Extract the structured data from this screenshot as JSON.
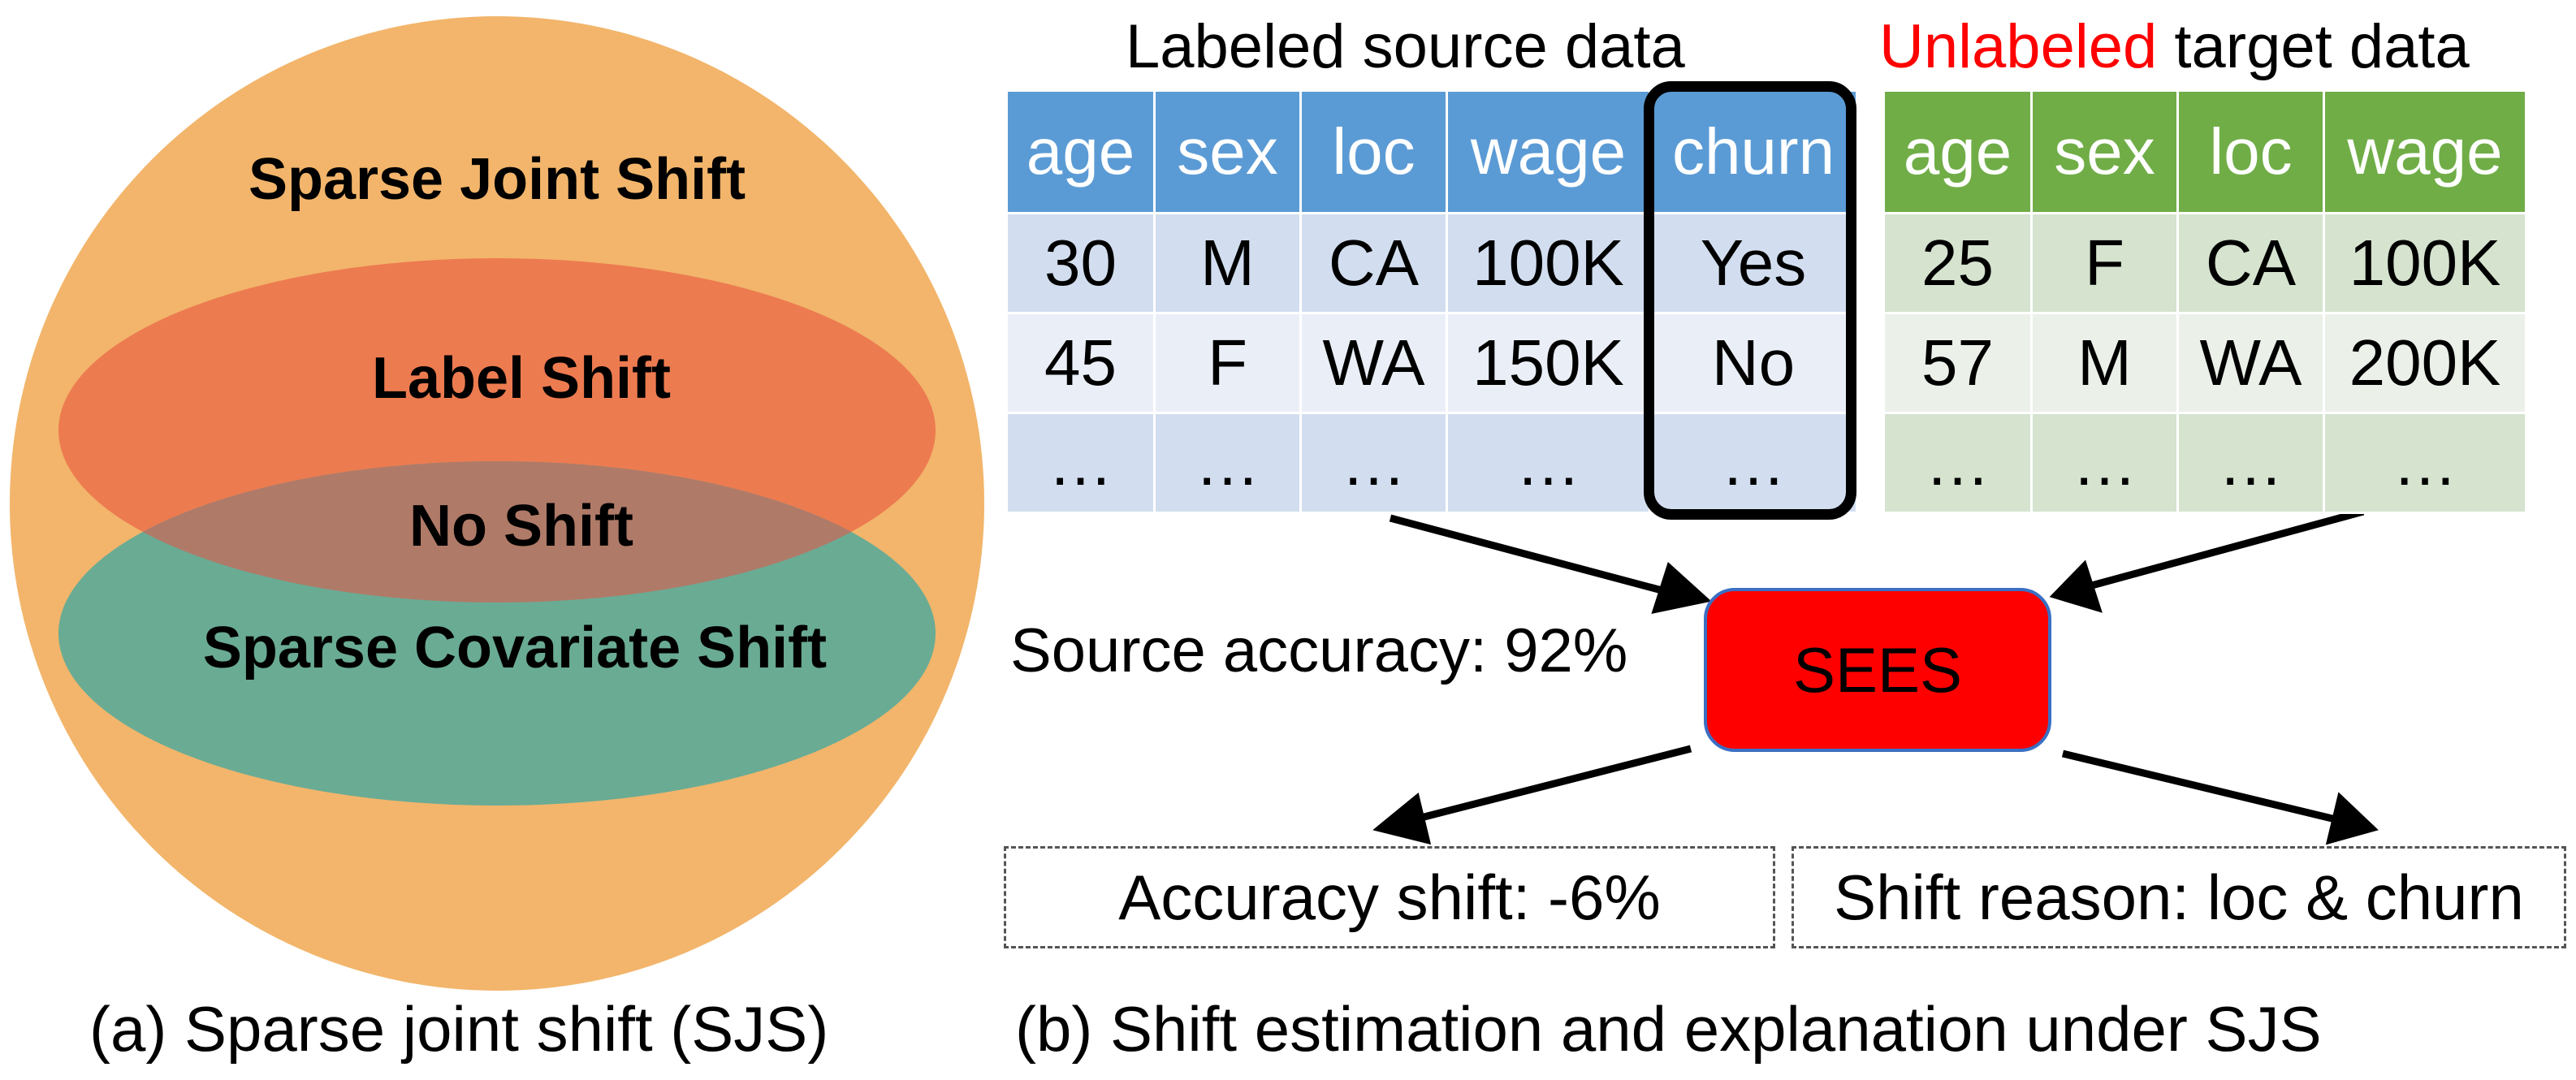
{
  "panel_a": {
    "sets": {
      "sparse_joint_shift": "Sparse Joint Shift",
      "label_shift": "Label Shift",
      "no_shift": "No Shift",
      "sparse_covariate_shift": "Sparse Covariate Shift"
    },
    "caption": "(a) Sparse joint shift (SJS)",
    "colors": {
      "outer_circle": "#f2b56b",
      "label_shift_ellipse": "#ed7b50",
      "covariate_shift_ellipse": "#6aab94",
      "overlap": "#b07a68"
    }
  },
  "panel_b": {
    "source_title": "Labeled source data",
    "target_title_highlight": "Unlabeled",
    "target_title_rest": " target data",
    "highlight_color": "#ff0000",
    "source_table": {
      "headers": [
        "age",
        "sex",
        "loc",
        "wage",
        "churn"
      ],
      "rows": [
        [
          "30",
          "M",
          "CA",
          "100K",
          "Yes"
        ],
        [
          "45",
          "F",
          "WA",
          "150K",
          "No"
        ],
        [
          "…",
          "…",
          "…",
          "…",
          "…"
        ]
      ]
    },
    "target_table": {
      "headers": [
        "age",
        "sex",
        "loc",
        "wage"
      ],
      "rows": [
        [
          "25",
          "F",
          "CA",
          "100K"
        ],
        [
          "57",
          "M",
          "WA",
          "200K"
        ],
        [
          "…",
          "…",
          "…",
          "…"
        ]
      ]
    },
    "source_accuracy": "Source accuracy: 92%",
    "model_name": "SEES",
    "accuracy_shift": "Accuracy shift: -6%",
    "shift_reason": "Shift reason: loc & churn",
    "caption": "(b) Shift estimation and explanation under SJS"
  }
}
